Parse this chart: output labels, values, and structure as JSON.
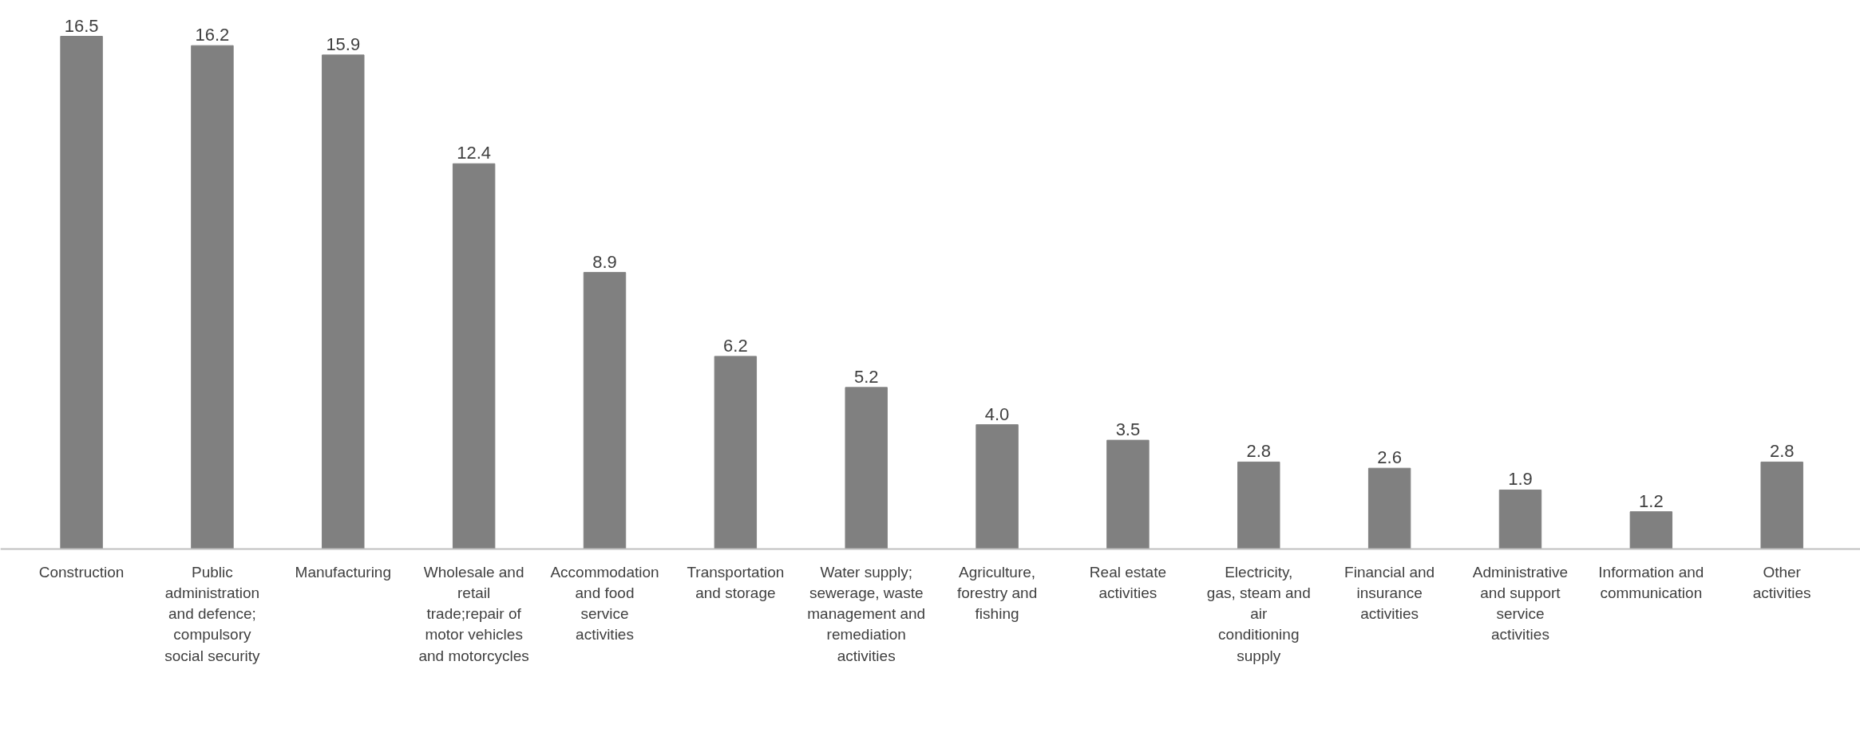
{
  "chart_data": {
    "type": "bar",
    "categories": [
      "Construction",
      "Public administration and defence; compulsory social security",
      "Manufacturing",
      "Wholesale and retail trade;repair of motor vehicles and motorcycles",
      "Accommodation and food service activities",
      "Transportation and storage",
      "Water supply; sewerage, waste management and remediation activities",
      "Agriculture, forestry and fishing",
      "Real estate activities",
      "Electricity, gas, steam and air conditioning supply",
      "Financial and insurance activities",
      "Administrative and support service activities",
      "Information and communication",
      "Other activities"
    ],
    "values": [
      16.5,
      16.2,
      15.9,
      12.4,
      8.9,
      6.2,
      5.2,
      4.0,
      3.5,
      2.8,
      2.6,
      1.9,
      1.2,
      2.8
    ],
    "value_labels": [
      "16.5",
      "16.2",
      "15.9",
      "12.4",
      "8.9",
      "6.2",
      "5.2",
      "4.0",
      "3.5",
      "2.8",
      "2.6",
      "1.9",
      "1.2",
      "2.8"
    ],
    "color": "#808080",
    "grid": false
  }
}
